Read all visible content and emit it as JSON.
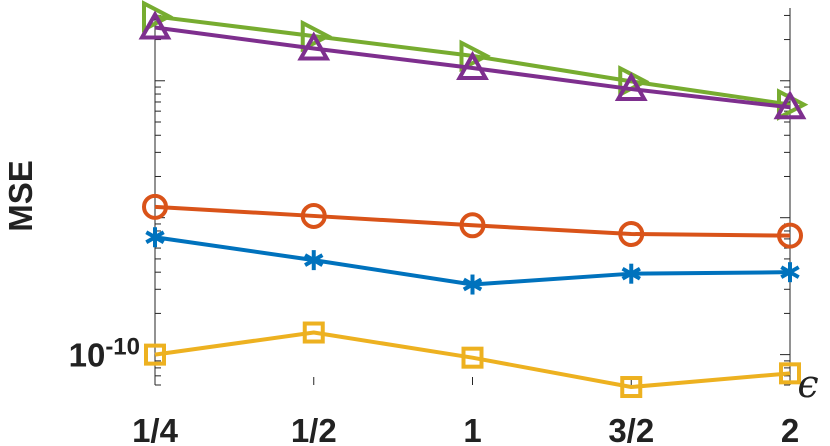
{
  "chart_data": {
    "type": "line",
    "title": "",
    "xlabel": "ϵ",
    "ylabel": "MSE",
    "y_scale": "log",
    "categories": [
      "1/4",
      "1/2",
      "1",
      "3/2",
      "2"
    ],
    "y_tick_labels": [
      {
        "base": "10",
        "exponent": "-10",
        "value": 1e-10
      }
    ],
    "ylim": [
      6e-11,
      3.4e-08
    ],
    "grid": false,
    "series": [
      {
        "color": "#77AC30",
        "marker": "triangle-right",
        "values": [
          2.95e-08,
          2.12e-08,
          1.52e-08,
          9.9e-09,
          6.7e-09
        ]
      },
      {
        "color": "#7E2F8E",
        "marker": "triangle-up",
        "values": [
          2.45e-08,
          1.72e-08,
          1.24e-08,
          8.7e-09,
          6.4e-09
        ]
      },
      {
        "color": "#D95319",
        "marker": "circle",
        "values": [
          1.2e-09,
          1.03e-09,
          8.8e-10,
          7.6e-10,
          7.4e-10
        ]
      },
      {
        "color": "#0072BD",
        "marker": "asterisk",
        "values": [
          7.2e-10,
          4.9e-10,
          3.25e-10,
          3.9e-10,
          4e-10
        ]
      },
      {
        "color": "#EDB120",
        "marker": "square",
        "values": [
          1e-10,
          1.45e-10,
          9.5e-11,
          5.8e-11,
          7.3e-11
        ]
      }
    ]
  }
}
